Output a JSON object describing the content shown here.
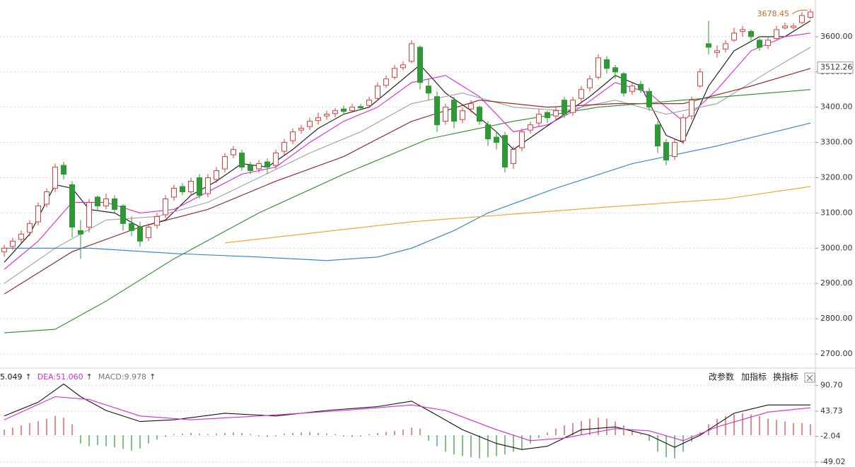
{
  "chart_data": [
    {
      "type": "candlestick",
      "ylim": [
        2662,
        3704
      ],
      "yticks": [
        {
          "value": 2700,
          "label": "2700.00"
        },
        {
          "value": 2800,
          "label": "2800.00"
        },
        {
          "value": 2900,
          "label": "2900.00"
        },
        {
          "value": 3000,
          "label": "3000.00"
        },
        {
          "value": 3100,
          "label": "3100.00"
        },
        {
          "value": 3200,
          "label": "3200.00"
        },
        {
          "value": 3300,
          "label": "3300.00"
        },
        {
          "value": 3400,
          "label": "3400.00"
        },
        {
          "value": 3500,
          "label": "3500.00"
        },
        {
          "value": 3600,
          "label": "3600.00"
        }
      ],
      "grid": true,
      "up_color": "#d9413a",
      "down_color": "#2f9a35",
      "ohlc": [
        [
          2990,
          3010,
          2975,
          3000
        ],
        [
          3005,
          3030,
          2995,
          3020
        ],
        [
          3025,
          3050,
          3015,
          3040
        ],
        [
          3045,
          3080,
          3035,
          3070
        ],
        [
          3075,
          3130,
          3065,
          3120
        ],
        [
          3125,
          3170,
          3115,
          3160
        ],
        [
          3170,
          3240,
          3160,
          3230
        ],
        [
          3235,
          3245,
          3195,
          3210
        ],
        [
          3180,
          3190,
          3030,
          3060
        ],
        [
          3050,
          3080,
          2970,
          3040
        ],
        [
          3060,
          3140,
          3045,
          3130
        ],
        [
          3145,
          3150,
          3105,
          3120
        ],
        [
          3120,
          3155,
          3110,
          3140
        ],
        [
          3140,
          3150,
          3100,
          3110
        ],
        [
          3120,
          3125,
          3050,
          3070
        ],
        [
          3070,
          3090,
          3035,
          3050
        ],
        [
          3060,
          3075,
          3005,
          3020
        ],
        [
          3030,
          3070,
          3020,
          3060
        ],
        [
          3065,
          3100,
          3055,
          3090
        ],
        [
          3095,
          3150,
          3085,
          3140
        ],
        [
          3145,
          3180,
          3135,
          3170
        ],
        [
          3175,
          3185,
          3150,
          3160
        ],
        [
          3160,
          3200,
          3150,
          3190
        ],
        [
          3200,
          3210,
          3140,
          3150
        ],
        [
          3155,
          3210,
          3145,
          3200
        ],
        [
          3195,
          3230,
          3185,
          3220
        ],
        [
          3225,
          3270,
          3215,
          3260
        ],
        [
          3265,
          3290,
          3255,
          3280
        ],
        [
          3270,
          3280,
          3220,
          3230
        ],
        [
          3235,
          3245,
          3210,
          3220
        ],
        [
          3225,
          3250,
          3215,
          3240
        ],
        [
          3245,
          3255,
          3210,
          3230
        ],
        [
          3235,
          3280,
          3225,
          3270
        ],
        [
          3275,
          3310,
          3265,
          3300
        ],
        [
          3305,
          3340,
          3295,
          3330
        ],
        [
          3335,
          3350,
          3325,
          3340
        ],
        [
          3345,
          3370,
          3335,
          3360
        ],
        [
          3362,
          3385,
          3350,
          3370
        ],
        [
          3375,
          3390,
          3365,
          3380
        ],
        [
          3382,
          3398,
          3372,
          3390
        ],
        [
          3395,
          3405,
          3380,
          3388
        ],
        [
          3390,
          3410,
          3385,
          3400
        ],
        [
          3402,
          3410,
          3392,
          3398
        ],
        [
          3405,
          3430,
          3398,
          3420
        ],
        [
          3425,
          3470,
          3418,
          3460
        ],
        [
          3462,
          3490,
          3455,
          3480
        ],
        [
          3485,
          3520,
          3478,
          3510
        ],
        [
          3512,
          3530,
          3505,
          3520
        ],
        [
          3530,
          3590,
          3525,
          3580
        ],
        [
          3570,
          3575,
          3450,
          3470
        ],
        [
          3460,
          3480,
          3420,
          3440
        ],
        [
          3430,
          3445,
          3330,
          3350
        ],
        [
          3360,
          3410,
          3350,
          3400
        ],
        [
          3420,
          3430,
          3340,
          3360
        ],
        [
          3365,
          3400,
          3355,
          3390
        ],
        [
          3395,
          3420,
          3385,
          3410
        ],
        [
          3400,
          3405,
          3350,
          3360
        ],
        [
          3350,
          3360,
          3290,
          3310
        ],
        [
          3315,
          3330,
          3280,
          3300
        ],
        [
          3320,
          3330,
          3215,
          3230
        ],
        [
          3240,
          3290,
          3225,
          3280
        ],
        [
          3285,
          3340,
          3275,
          3330
        ],
        [
          3335,
          3360,
          3325,
          3350
        ],
        [
          3355,
          3395,
          3345,
          3380
        ],
        [
          3385,
          3390,
          3355,
          3370
        ],
        [
          3375,
          3400,
          3365,
          3390
        ],
        [
          3420,
          3430,
          3370,
          3380
        ],
        [
          3385,
          3430,
          3375,
          3420
        ],
        [
          3425,
          3460,
          3415,
          3450
        ],
        [
          3455,
          3490,
          3445,
          3480
        ],
        [
          3485,
          3550,
          3478,
          3540
        ],
        [
          3535,
          3545,
          3495,
          3510
        ],
        [
          3512,
          3520,
          3480,
          3500
        ],
        [
          3495,
          3500,
          3430,
          3440
        ],
        [
          3445,
          3470,
          3435,
          3460
        ],
        [
          3465,
          3475,
          3440,
          3450
        ],
        [
          3445,
          3455,
          3390,
          3400
        ],
        [
          3350,
          3360,
          3270,
          3290
        ],
        [
          3300,
          3310,
          3235,
          3250
        ],
        [
          3260,
          3310,
          3250,
          3300
        ],
        [
          3305,
          3380,
          3295,
          3370
        ],
        [
          3375,
          3430,
          3365,
          3420
        ],
        [
          3460,
          3510,
          3455,
          3500
        ],
        [
          3580,
          3645,
          3550,
          3570
        ],
        [
          3555,
          3575,
          3540,
          3560
        ],
        [
          3565,
          3590,
          3555,
          3580
        ],
        [
          3590,
          3625,
          3585,
          3610
        ],
        [
          3615,
          3630,
          3600,
          3620
        ],
        [
          3615,
          3620,
          3590,
          3600
        ],
        [
          3590,
          3595,
          3560,
          3570
        ],
        [
          3575,
          3600,
          3565,
          3590
        ],
        [
          3595,
          3630,
          3590,
          3620
        ],
        [
          3625,
          3640,
          3620,
          3630
        ],
        [
          3626,
          3638,
          3620,
          3630
        ],
        [
          3640,
          3670,
          3635,
          3660
        ],
        [
          3655,
          3678.45,
          3650,
          3670
        ]
      ],
      "lines": [
        {
          "color": "#111111",
          "x": [
            0,
            3,
            6,
            8,
            10,
            13,
            16,
            19,
            22,
            25,
            28,
            31,
            34,
            37,
            40,
            43,
            46,
            49,
            52,
            55,
            58,
            60,
            63,
            66,
            69,
            72,
            75,
            78,
            80,
            83,
            86,
            89,
            92,
            95
          ],
          "values": [
            2960,
            3040,
            3180,
            3170,
            3110,
            3100,
            3060,
            3080,
            3150,
            3190,
            3240,
            3230,
            3280,
            3340,
            3380,
            3400,
            3460,
            3520,
            3440,
            3390,
            3330,
            3280,
            3330,
            3380,
            3430,
            3490,
            3460,
            3320,
            3300,
            3460,
            3560,
            3600,
            3600,
            3645
          ]
        },
        {
          "color": "#d62ad6",
          "x": [
            0,
            4,
            8,
            12,
            16,
            20,
            24,
            28,
            32,
            36,
            40,
            44,
            48,
            52,
            56,
            60,
            64,
            68,
            72,
            76,
            80,
            84,
            88,
            92,
            95
          ],
          "values": [
            2940,
            3020,
            3130,
            3130,
            3100,
            3110,
            3160,
            3210,
            3230,
            3300,
            3360,
            3400,
            3470,
            3490,
            3430,
            3330,
            3350,
            3400,
            3470,
            3440,
            3360,
            3450,
            3560,
            3600,
            3610
          ]
        },
        {
          "color": "#a0a0a0",
          "x": [
            0,
            6,
            12,
            18,
            24,
            30,
            36,
            42,
            48,
            54,
            60,
            66,
            72,
            78,
            84,
            90,
            95
          ],
          "values": [
            2900,
            3000,
            3080,
            3090,
            3130,
            3200,
            3270,
            3330,
            3410,
            3440,
            3400,
            3390,
            3420,
            3380,
            3410,
            3500,
            3570
          ]
        },
        {
          "color": "#8b1a1a",
          "x": [
            0,
            8,
            16,
            24,
            32,
            40,
            48,
            56,
            64,
            72,
            80,
            88,
            95
          ],
          "values": [
            2870,
            2990,
            3060,
            3110,
            3190,
            3260,
            3360,
            3420,
            3400,
            3410,
            3410,
            3460,
            3510
          ]
        },
        {
          "color": "#2e8b2e",
          "x": [
            0,
            6,
            12,
            20,
            30,
            40,
            50,
            60,
            70,
            80,
            90,
            95
          ],
          "values": [
            2760,
            2770,
            2850,
            2970,
            3100,
            3210,
            3310,
            3360,
            3400,
            3420,
            3440,
            3450
          ]
        },
        {
          "color": "#2a7fd4",
          "x": [
            0,
            10,
            20,
            30,
            38,
            44,
            48,
            53,
            57,
            65,
            74,
            84,
            95
          ],
          "values": [
            3000,
            3000,
            2985,
            2975,
            2965,
            2975,
            3000,
            3050,
            3100,
            3170,
            3240,
            3290,
            3355
          ]
        },
        {
          "color": "#f0a020",
          "x": [
            26,
            48,
            70,
            85,
            95
          ],
          "values": [
            3015,
            3075,
            3115,
            3140,
            3175
          ]
        }
      ],
      "price_marker": {
        "value": 3512.26,
        "label": "3512.26"
      },
      "annotation": {
        "value": 3678.45,
        "color": "#d2691e"
      }
    },
    {
      "type": "macd",
      "ylim": [
        -57.8,
        120.8
      ],
      "yticks": [
        -49.02,
        -2.04,
        43.73,
        {
          "value": 90.7,
          "label": "90.70"
        }
      ],
      "indicators": [
        {
          "label": "5.049",
          "trend": "↑",
          "color": "#111111"
        },
        {
          "label": "DEA:51.060",
          "trend": "↑",
          "color": "#d62ad6"
        },
        {
          "label": "MACD:9.978",
          "trend": "↑",
          "color": "#777777"
        }
      ],
      "buttons": [
        "改参数",
        "加指标",
        "换指标"
      ],
      "histogram": [
        10,
        14,
        18,
        22,
        26,
        30,
        35,
        32,
        20,
        -15,
        -20,
        -18,
        -20,
        -22,
        -25,
        -28,
        -24,
        -15,
        -8,
        -3,
        2,
        3,
        4,
        3,
        2,
        3,
        4,
        5,
        4,
        2,
        -2,
        -3,
        -2,
        3,
        4,
        5,
        6,
        4,
        3,
        2,
        -2,
        -3,
        -2,
        2,
        4,
        6,
        8,
        10,
        14,
        12,
        -10,
        -20,
        -30,
        -35,
        -38,
        -40,
        -42,
        -40,
        -38,
        -35,
        -30,
        -25,
        -15,
        -5,
        5,
        12,
        18,
        22,
        26,
        30,
        32,
        30,
        25,
        18,
        10,
        2,
        -10,
        -30,
        -40,
        -42,
        -30,
        -12,
        5,
        20,
        30,
        35,
        38,
        40,
        38,
        35,
        30,
        28,
        25,
        22,
        22,
        20
      ],
      "up_color": "#d9413a",
      "down_color": "#2f9a35",
      "lines": [
        {
          "color": "#111111",
          "x": [
            0,
            4,
            7,
            9,
            12,
            16,
            20,
            26,
            32,
            38,
            44,
            48,
            50,
            54,
            58,
            61,
            64,
            68,
            72,
            76,
            79,
            82,
            86,
            90,
            95
          ],
          "values": [
            35,
            60,
            93,
            70,
            45,
            25,
            28,
            40,
            35,
            45,
            52,
            62,
            45,
            10,
            -15,
            -26,
            -20,
            10,
            15,
            0,
            -22,
            0,
            40,
            55,
            55
          ]
        },
        {
          "color": "#d62ad6",
          "x": [
            0,
            6,
            10,
            16,
            22,
            30,
            40,
            48,
            52,
            58,
            62,
            66,
            72,
            76,
            80,
            84,
            90,
            95
          ],
          "values": [
            28,
            70,
            65,
            35,
            28,
            35,
            45,
            55,
            45,
            10,
            -10,
            -5,
            12,
            8,
            -10,
            15,
            42,
            50
          ]
        }
      ]
    }
  ]
}
